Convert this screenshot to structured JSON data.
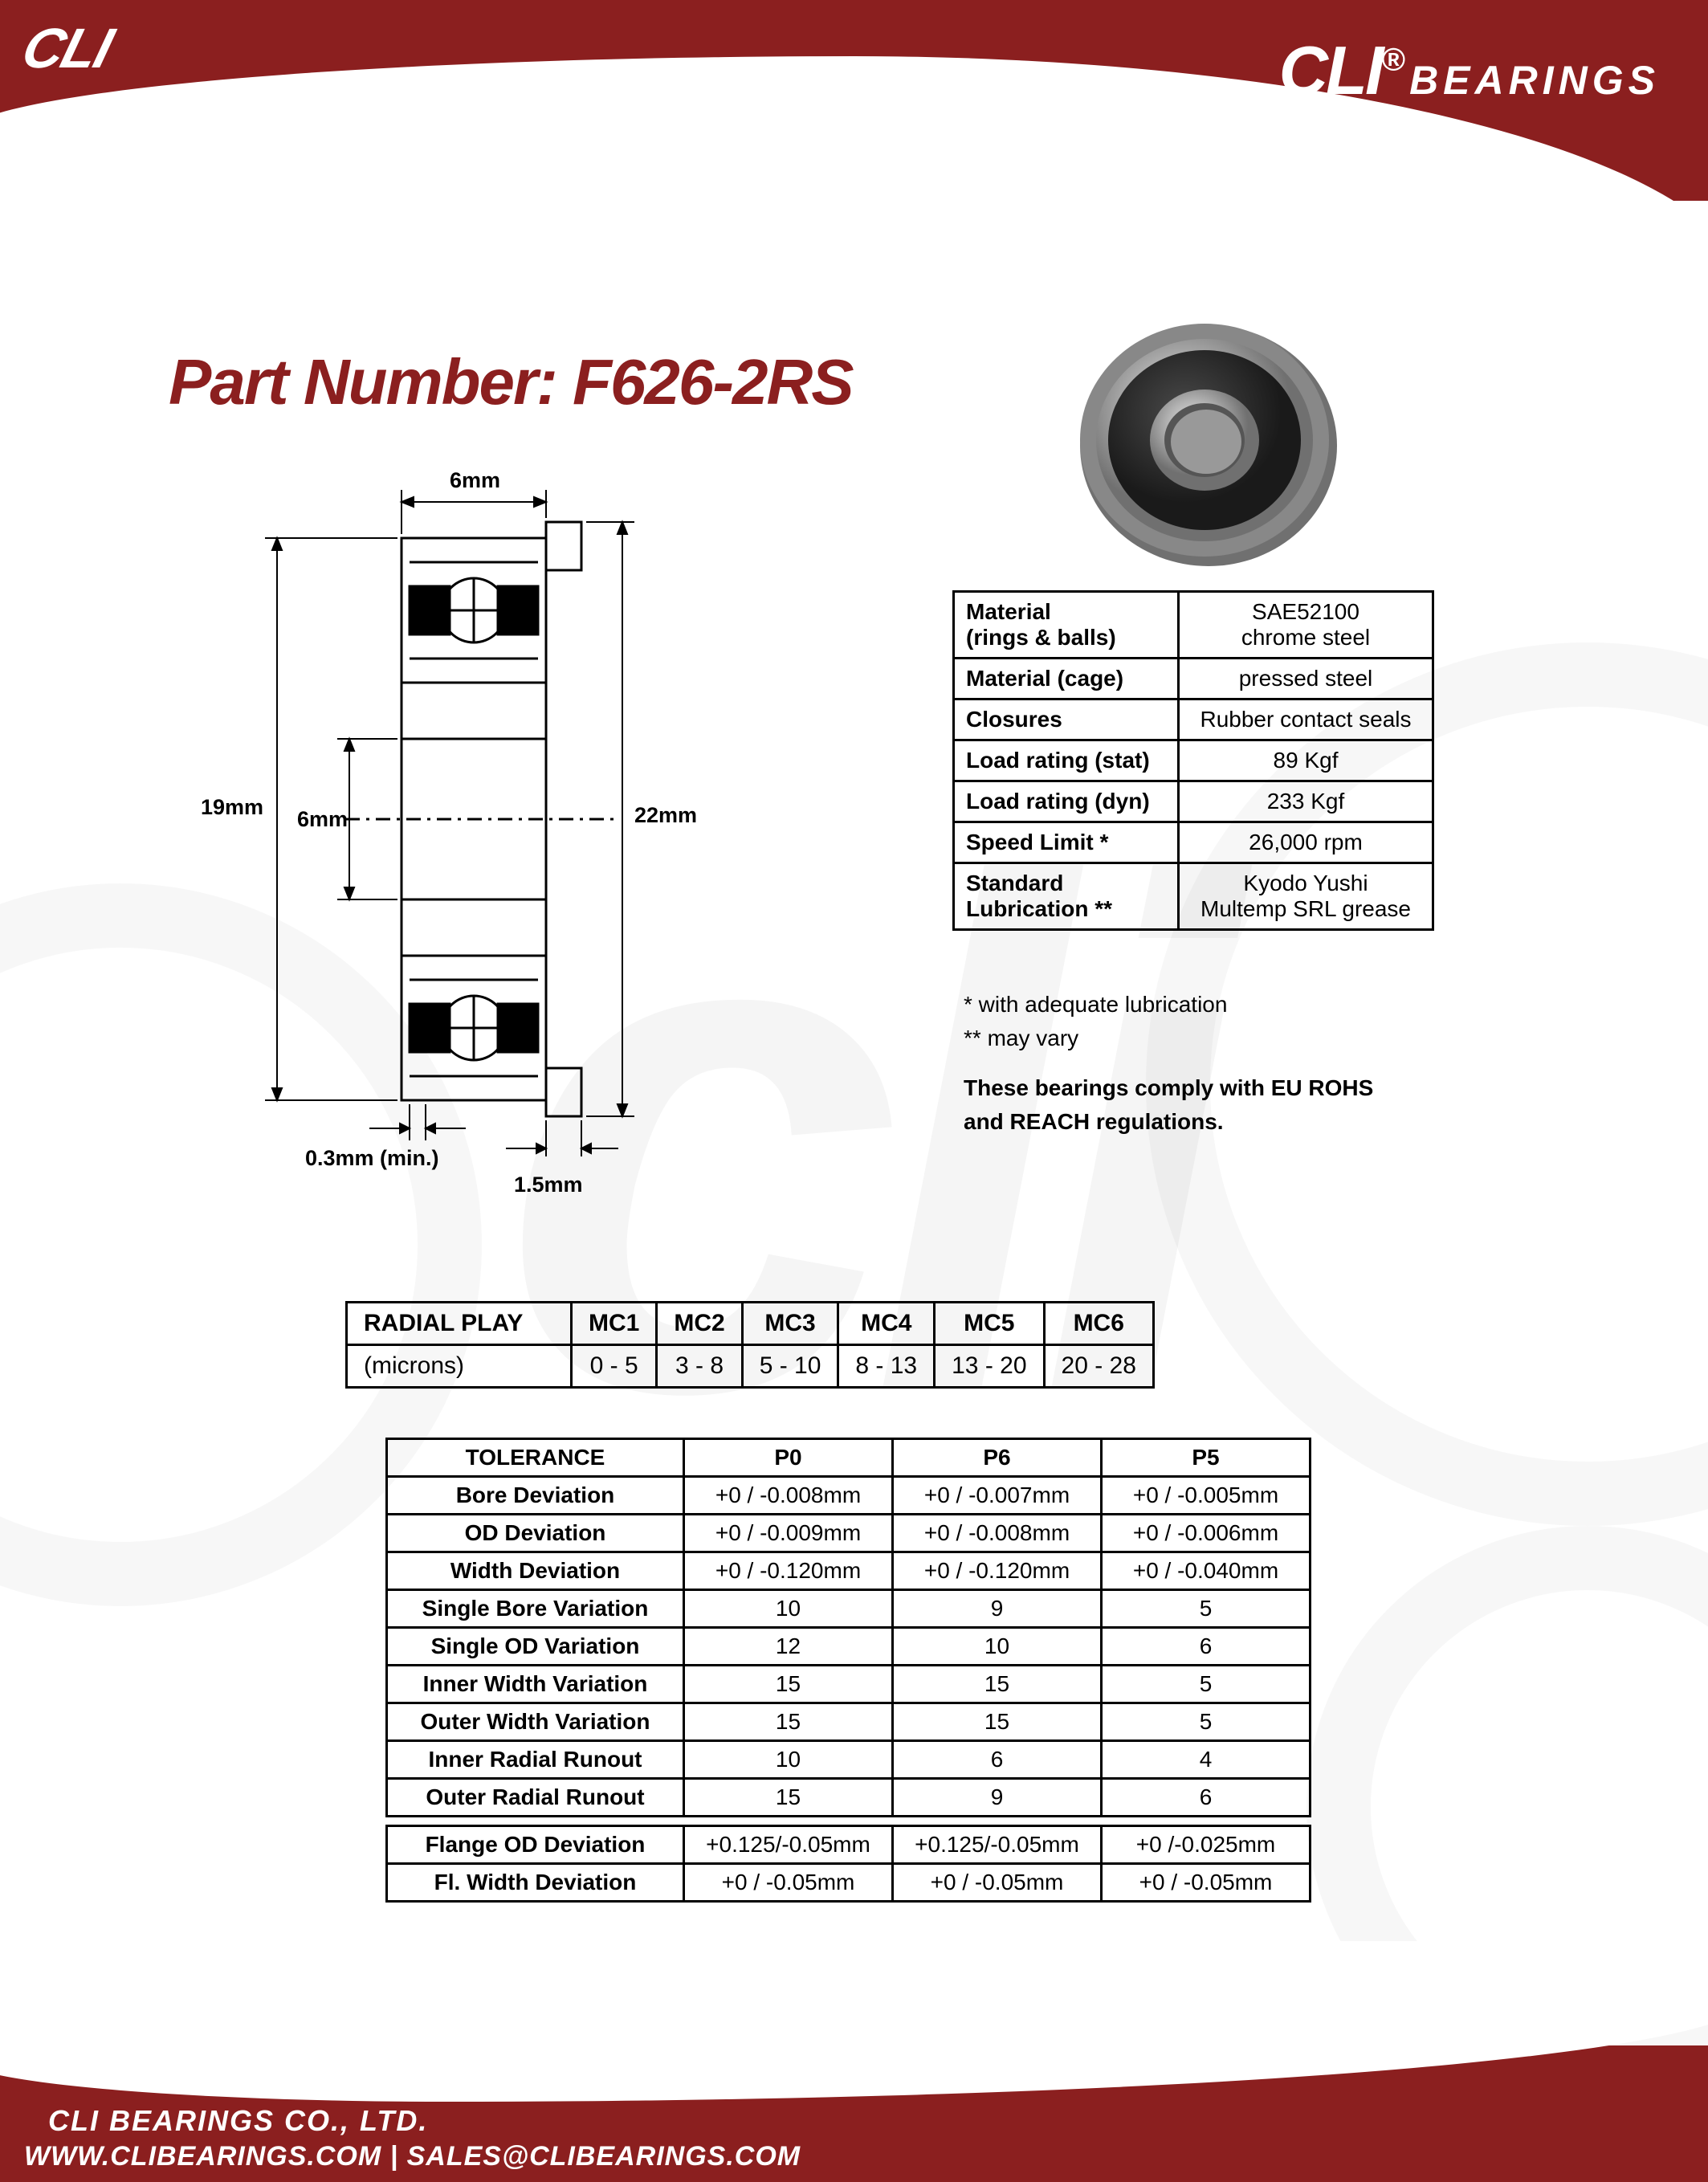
{
  "brand": {
    "top_left": "CLI",
    "top_right_main": "CLI",
    "reg": "®",
    "top_right_sub": "BEARINGS",
    "watermark": "cli"
  },
  "part_number": "Part Number: F626-2RS",
  "drawing": {
    "width_top": "6mm",
    "outer_dia": "19mm",
    "inner_dia": "6mm",
    "flange_dia": "22mm",
    "chamfer": "0.3mm (min.)",
    "flange_width": "1.5mm"
  },
  "specs": {
    "rows": [
      {
        "label": "Material\n(rings & balls)",
        "value": "SAE52100\nchrome steel"
      },
      {
        "label": "Material (cage)",
        "value": "pressed steel"
      },
      {
        "label": "Closures",
        "value": "Rubber contact seals"
      },
      {
        "label": "Load rating (stat)",
        "value": "89 Kgf"
      },
      {
        "label": "Load rating (dyn)",
        "value": "233 Kgf"
      },
      {
        "label": "Speed Limit *",
        "value": "26,000 rpm"
      },
      {
        "label": "Standard\nLubrication  **",
        "value": "Kyodo Yushi\nMultemp SRL grease"
      }
    ],
    "note1": "* with adequate lubrication",
    "note2": "** may vary",
    "compliance": "These bearings comply with EU ROHS\nand REACH  regulations."
  },
  "radial_play": {
    "header": "RADIAL PLAY",
    "unit": "(microns)",
    "cols": [
      "MC1",
      "MC2",
      "MC3",
      "MC4",
      "MC5",
      "MC6"
    ],
    "vals": [
      "0 - 5",
      "3 - 8",
      "5 - 10",
      "8 - 13",
      "13 - 20",
      "20 - 28"
    ]
  },
  "tolerance": {
    "header": "TOLERANCE",
    "grades": [
      "P0",
      "P6",
      "P5"
    ],
    "rows": [
      {
        "label": "Bore Deviation",
        "vals": [
          "+0 / -0.008mm",
          "+0 / -0.007mm",
          "+0 / -0.005mm"
        ]
      },
      {
        "label": "OD Deviation",
        "vals": [
          "+0 / -0.009mm",
          "+0 / -0.008mm",
          "+0 / -0.006mm"
        ]
      },
      {
        "label": "Width Deviation",
        "vals": [
          "+0 / -0.120mm",
          "+0 / -0.120mm",
          "+0 / -0.040mm"
        ]
      },
      {
        "label": "Single Bore Variation",
        "vals": [
          "10",
          "9",
          "5"
        ]
      },
      {
        "label": "Single OD Variation",
        "vals": [
          "12",
          "10",
          "6"
        ]
      },
      {
        "label": "Inner Width Variation",
        "vals": [
          "15",
          "15",
          "5"
        ]
      },
      {
        "label": "Outer Width Variation",
        "vals": [
          "15",
          "15",
          "5"
        ]
      },
      {
        "label": "Inner Radial Runout",
        "vals": [
          "10",
          "6",
          "4"
        ]
      },
      {
        "label": "Outer Radial Runout",
        "vals": [
          "15",
          "9",
          "6"
        ]
      }
    ],
    "flange_rows": [
      {
        "label": "Flange OD Deviation",
        "vals": [
          "+0.125/-0.05mm",
          "+0.125/-0.05mm",
          "+0 /-0.025mm"
        ]
      },
      {
        "label": "Fl. Width Deviation",
        "vals": [
          "+0 / -0.05mm",
          "+0 / -0.05mm",
          "+0 / -0.05mm"
        ]
      }
    ]
  },
  "footer": {
    "company": "CLI BEARINGS CO., LTD.",
    "contact": "WWW.CLIBEARINGS.COM  |  SALES@CLIBEARINGS.COM"
  },
  "colors": {
    "brand_red": "#8b1f1f",
    "black": "#000000"
  }
}
